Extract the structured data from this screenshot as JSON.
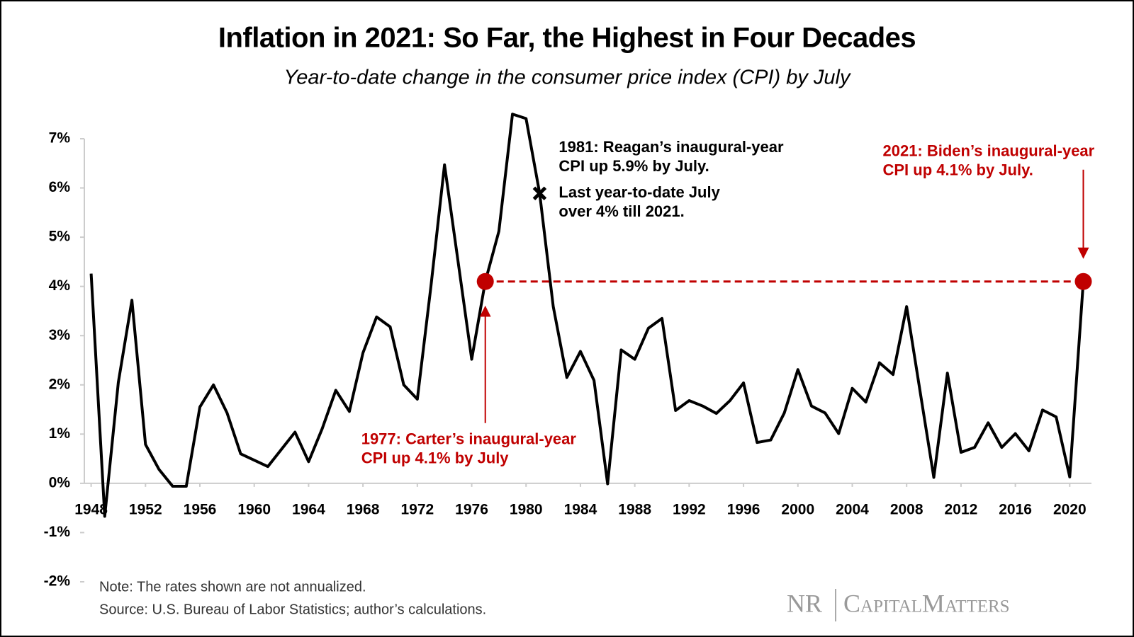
{
  "chart_data": {
    "type": "line",
    "title": "Inflation in 2021: So Far, the Highest in Four Decades",
    "subtitle": "Year-to-date change in the consumer price index (CPI) by July",
    "x": [
      1948,
      1949,
      1950,
      1951,
      1952,
      1953,
      1954,
      1955,
      1956,
      1957,
      1958,
      1959,
      1960,
      1961,
      1962,
      1963,
      1964,
      1965,
      1966,
      1967,
      1968,
      1969,
      1970,
      1971,
      1972,
      1973,
      1974,
      1975,
      1976,
      1977,
      1978,
      1979,
      1980,
      1981,
      1982,
      1983,
      1984,
      1985,
      1986,
      1987,
      1988,
      1989,
      1990,
      1991,
      1992,
      1993,
      1994,
      1995,
      1996,
      1997,
      1998,
      1999,
      2000,
      2001,
      2002,
      2003,
      2004,
      2005,
      2006,
      2007,
      2008,
      2009,
      2010,
      2011,
      2012,
      2013,
      2014,
      2015,
      2016,
      2017,
      2018,
      2019,
      2020,
      2021
    ],
    "series": [
      {
        "name": "CPI year-to-date change by July",
        "color": "#000000",
        "values": [
          4.26,
          -0.67,
          2.05,
          3.72,
          0.79,
          0.28,
          -0.06,
          -0.06,
          1.55,
          2.0,
          1.43,
          0.6,
          0.47,
          0.34,
          0.69,
          1.04,
          0.44,
          1.11,
          1.89,
          1.46,
          2.65,
          3.38,
          3.18,
          2.0,
          1.71,
          4.0,
          6.47,
          4.5,
          2.52,
          4.1,
          5.12,
          7.5,
          7.41,
          5.89,
          3.59,
          2.15,
          2.68,
          2.09,
          -0.01,
          2.71,
          2.52,
          3.15,
          3.35,
          1.48,
          1.68,
          1.57,
          1.42,
          1.68,
          2.04,
          0.83,
          0.88,
          1.43,
          2.31,
          1.57,
          1.43,
          1.01,
          1.93,
          1.65,
          2.45,
          2.21,
          3.59,
          1.85,
          0.12,
          2.24,
          0.63,
          0.73,
          1.23,
          0.73,
          1.01,
          0.66,
          1.49,
          1.35,
          0.13,
          4.1
        ]
      }
    ],
    "xlim": [
      1947.5,
      2021.6
    ],
    "xticks": [
      1948,
      1952,
      1956,
      1960,
      1964,
      1968,
      1972,
      1976,
      1980,
      1984,
      1988,
      1992,
      1996,
      2000,
      2004,
      2008,
      2012,
      2016,
      2020
    ],
    "ylim": [
      -2,
      7
    ],
    "yticks": [
      {
        "value": -2,
        "label": "-2%"
      },
      {
        "value": -1,
        "label": "-1%"
      },
      {
        "value": 0,
        "label": "0%"
      },
      {
        "value": 1,
        "label": "1%"
      },
      {
        "value": 2,
        "label": "2%"
      },
      {
        "value": 3,
        "label": "3%"
      },
      {
        "value": 4,
        "label": "4%"
      },
      {
        "value": 5,
        "label": "5%"
      },
      {
        "value": 6,
        "label": "6%"
      },
      {
        "value": 7,
        "label": "7%"
      }
    ],
    "highlight_color": "#c00000",
    "highlights": [
      {
        "x": 1977,
        "value": 4.1,
        "lines": [
          "1977: Carter’s inaugural-year",
          "CPI up 4.1% by July"
        ]
      },
      {
        "x": 2021,
        "value": 4.1,
        "lines": [
          "2021: Biden’s inaugural-year",
          "CPI up 4.1% by July."
        ]
      }
    ],
    "marker": {
      "x": 1981,
      "value": 5.89,
      "lines": [
        "1981: Reagan’s inaugural-year",
        "CPI up 5.9% by July.",
        "Last year-to-date July",
        "over 4% till 2021."
      ]
    },
    "notes": [
      "Note: The rates shown are not annualized.",
      "Source: U.S. Bureau of Labor Statistics; author’s calculations."
    ],
    "logo": [
      "NR",
      "CapitalMatters"
    ]
  }
}
